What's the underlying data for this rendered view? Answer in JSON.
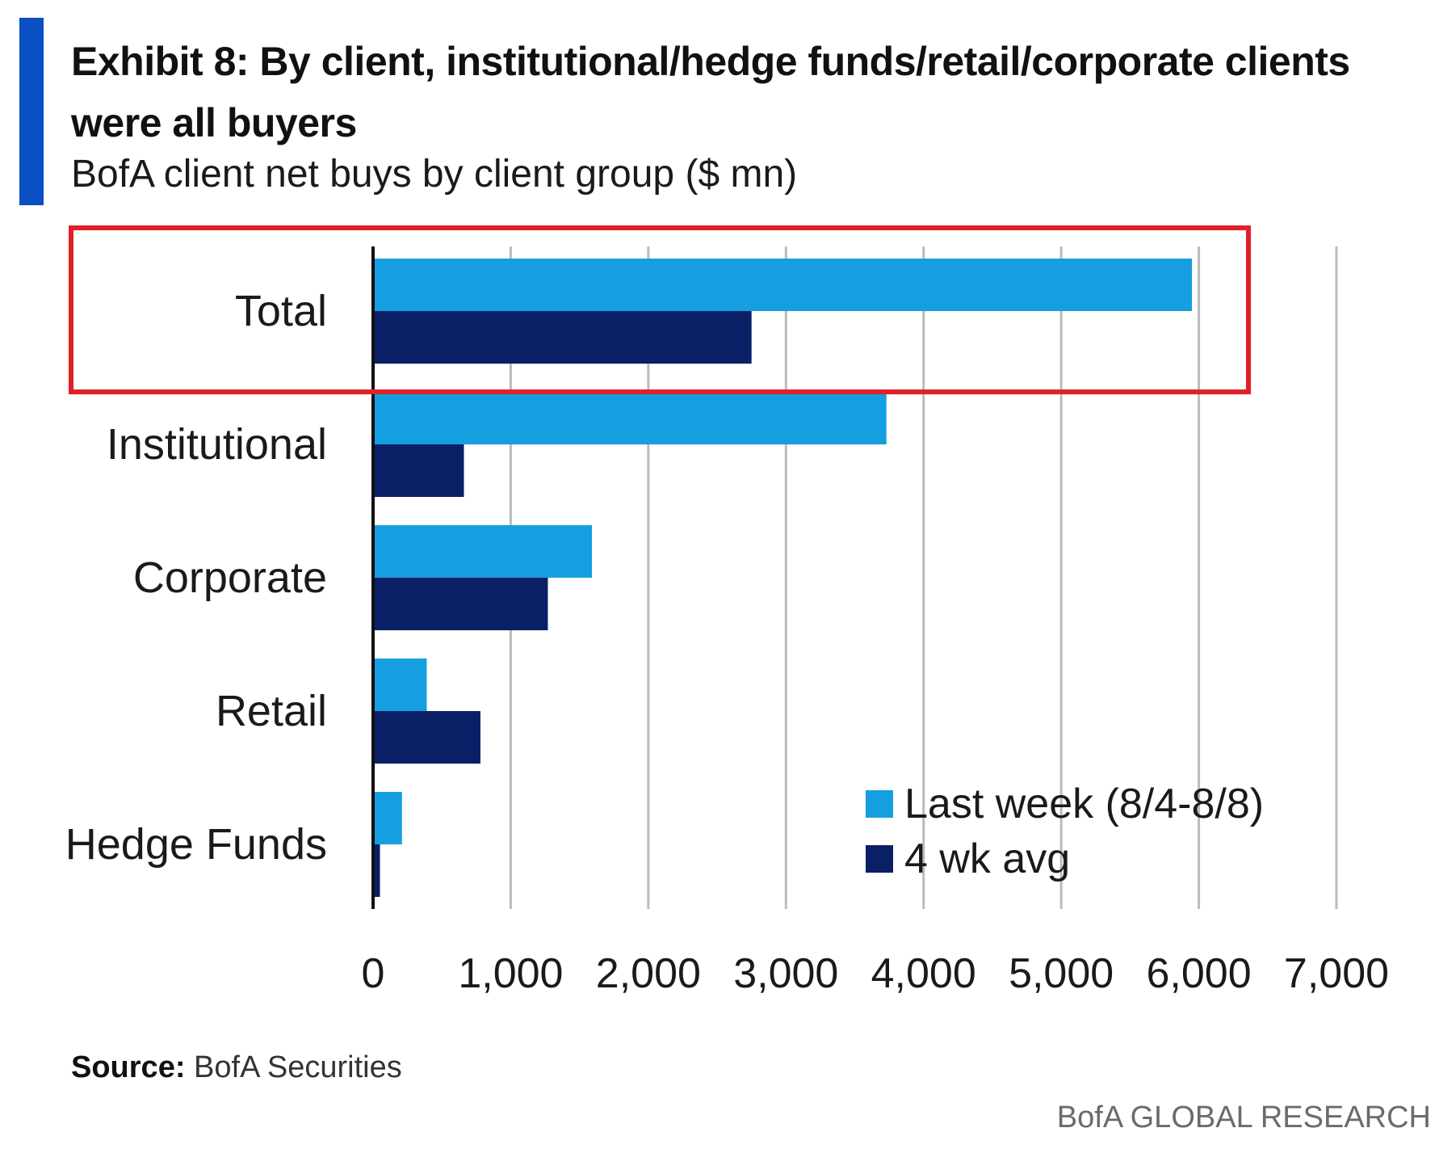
{
  "header": {
    "title": "Exhibit 8: By client, institutional/hedge funds/retail/corporate clients were all buyers",
    "subtitle": "BofA client net buys by client group ($ mn)"
  },
  "footer": {
    "source_label": "Source:",
    "source_text": "BofA Securities",
    "brand": "BofA GLOBAL RESEARCH"
  },
  "colors": {
    "last_week": "#159ee0",
    "four_wk_avg": "#0b1f66",
    "highlight": "#e0202a",
    "grid": "#bbbbbb",
    "axis": "#111111"
  },
  "chart_data": {
    "type": "bar",
    "orientation": "horizontal",
    "title": "Exhibit 8: By client, institutional/hedge funds/retail/corporate clients were all buyers",
    "subtitle": "BofA client net buys by client group ($ mn)",
    "categories": [
      "Total",
      "Institutional",
      "Corporate",
      "Retail",
      "Hedge Funds"
    ],
    "series": [
      {
        "name": "Last week (8/4-8/8)",
        "values": [
          5950,
          3730,
          1590,
          390,
          210
        ]
      },
      {
        "name": "4 wk avg",
        "values": [
          2750,
          660,
          1270,
          780,
          50
        ]
      }
    ],
    "xlim": [
      0,
      7000
    ],
    "xticks": [
      0,
      1000,
      2000,
      3000,
      4000,
      5000,
      6000,
      7000
    ],
    "xtick_labels": [
      "0",
      "1,000",
      "2,000",
      "3,000",
      "4,000",
      "5,000",
      "6,000",
      "7,000"
    ],
    "xlabel": "",
    "ylabel": "",
    "grid": "vertical",
    "legend": "bottom-right",
    "highlighted_category": "Total"
  }
}
